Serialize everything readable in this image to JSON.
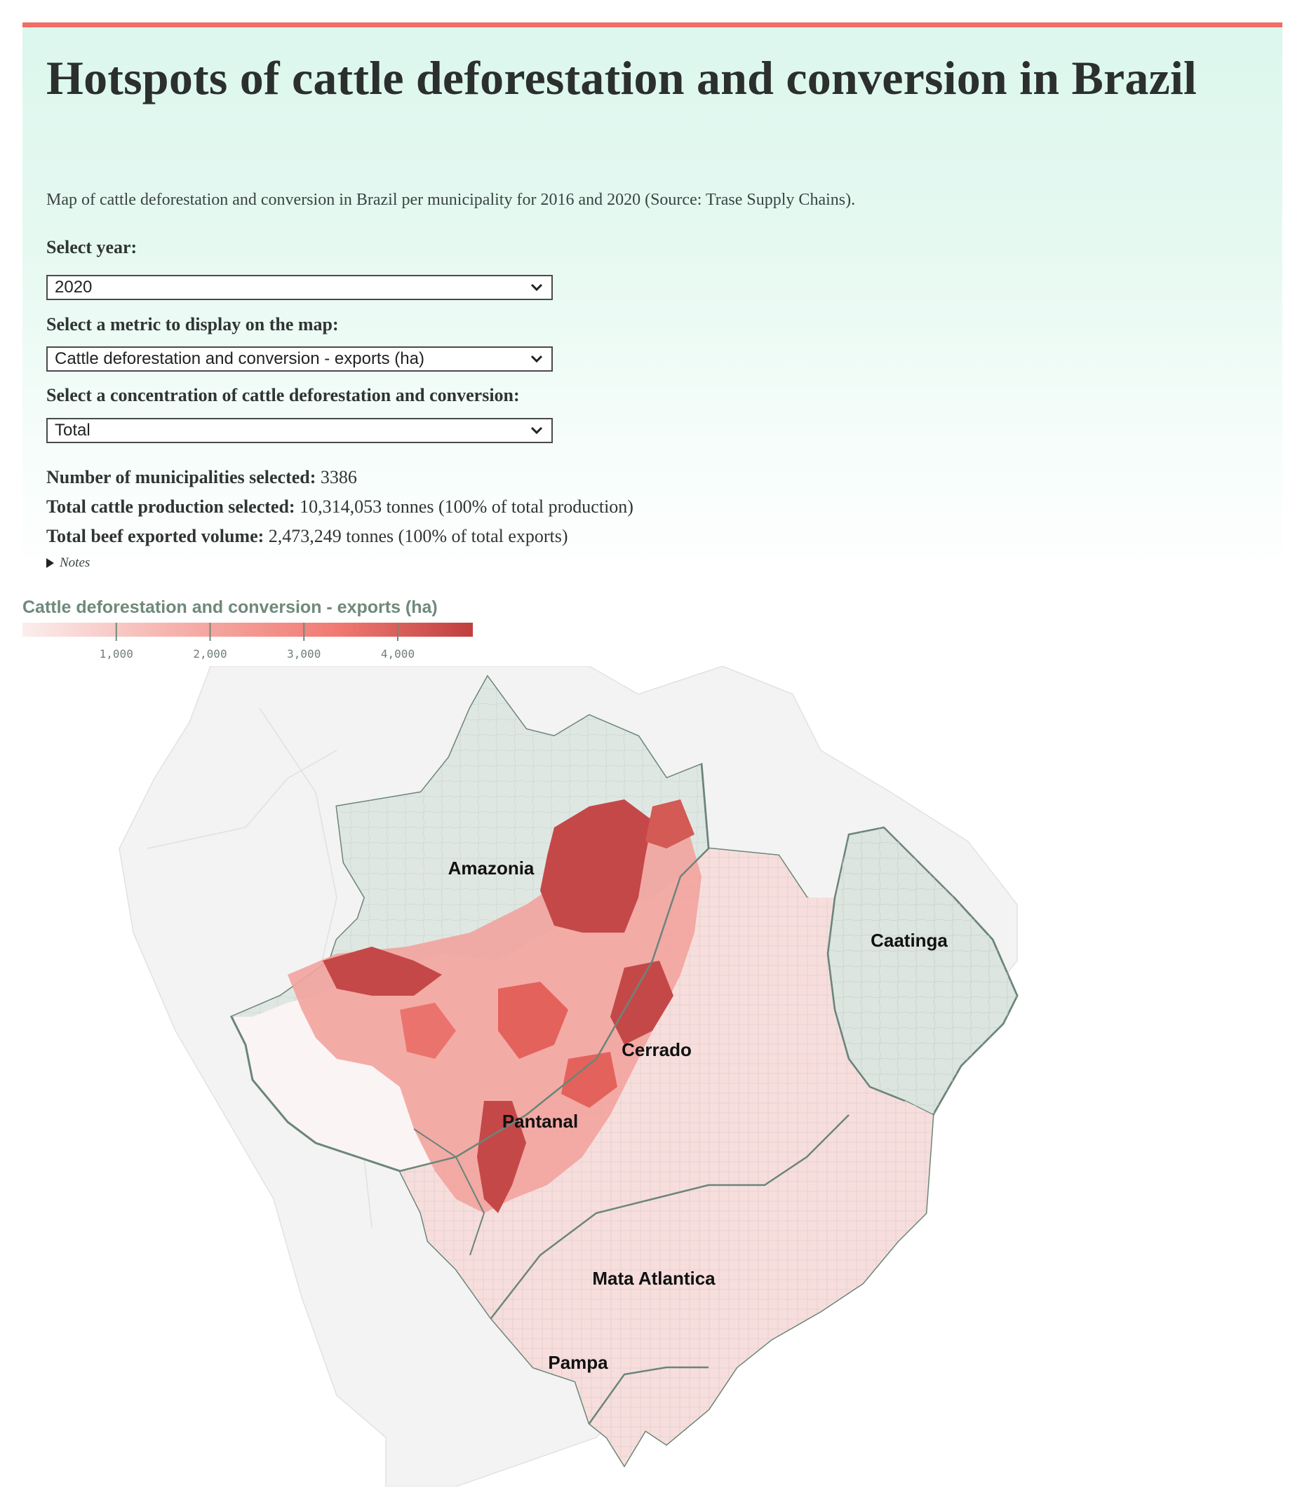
{
  "title": "Hotspots of cattle deforestation and conversion in Brazil",
  "subtitle": "Map of cattle deforestation and conversion in Brazil per municipality for 2016 and 2020 (Source: Trase Supply Chains).",
  "controls": {
    "year_label": "Select year:",
    "year_value": "2020",
    "metric_label": "Select a metric to display on the map:",
    "metric_value": "Cattle deforestation and conversion - exports (ha)",
    "concentration_label": "Select a concentration of cattle deforestation and conversion:",
    "concentration_value": "Total"
  },
  "stats": {
    "municipalities_label": "Number of municipalities selected:",
    "municipalities_value": "3386",
    "production_label": "Total cattle production selected:",
    "production_value": "10,314,053 tonnes (100% of total production)",
    "exports_label": "Total beef exported volume:",
    "exports_value": "2,473,249 tonnes (100% of total exports)"
  },
  "notes_label": "Notes",
  "legend": {
    "title": "Cattle deforestation and conversion - exports (ha)",
    "ticks": [
      "1,000",
      "2,000",
      "3,000",
      "4,000"
    ],
    "tick_values": [
      1000,
      2000,
      3000,
      4000
    ],
    "domain": [
      0,
      4800
    ],
    "colors": [
      "#fbeeed",
      "#f6b3ae",
      "#f07a72",
      "#bf3f3f"
    ]
  },
  "map": {
    "biomes": [
      "Amazonia",
      "Caatinga",
      "Cerrado",
      "Pantanal",
      "Mata Atlantica",
      "Pampa"
    ],
    "colors": {
      "background_land": "#f3f3f3",
      "no_data": "#dfe7e3",
      "border": "#6b8579",
      "low": "#f7dcda",
      "mid": "#f08a83",
      "high": "#c34444"
    }
  }
}
